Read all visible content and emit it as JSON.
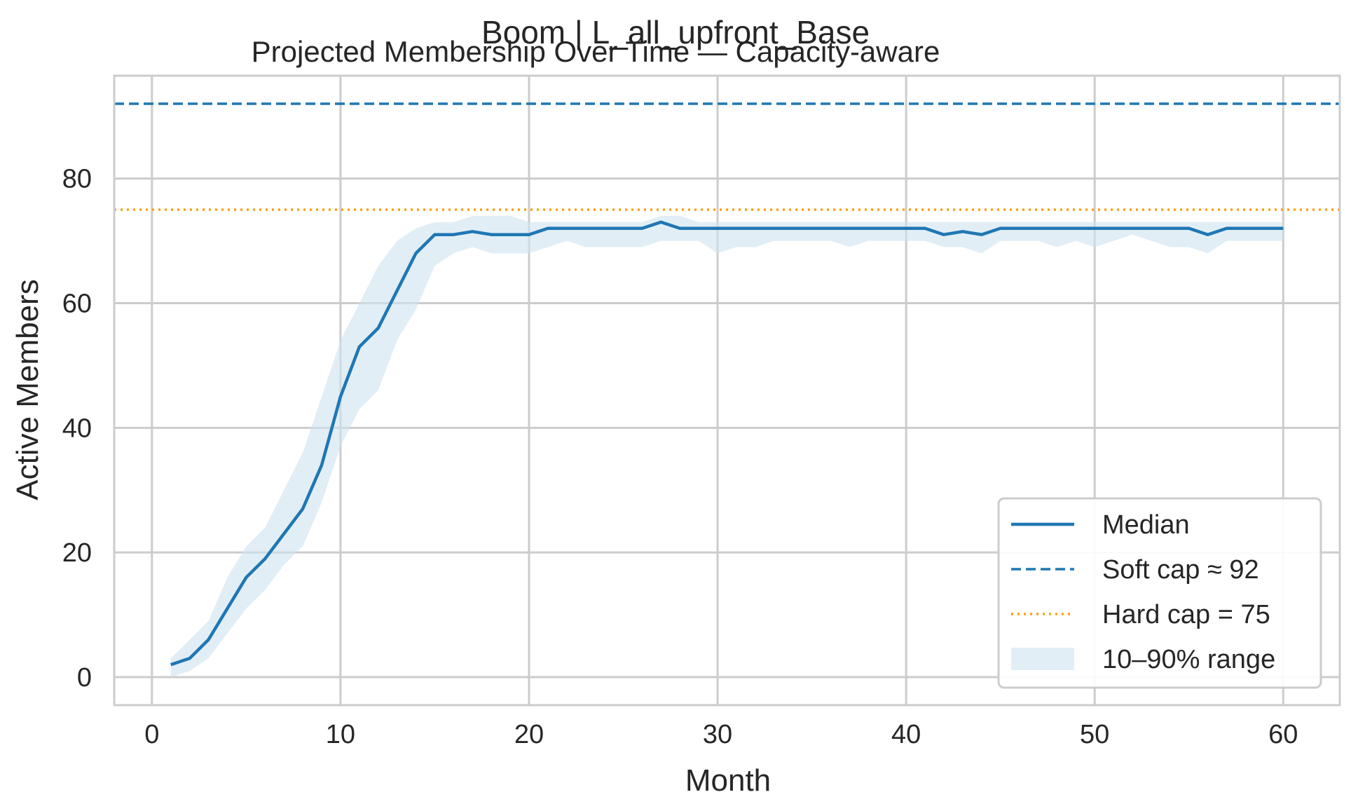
{
  "chart_data": {
    "type": "line",
    "suptitle": "Boom | L_all_upfront_Base",
    "title": "Projected Membership Over Time — Capacity-aware",
    "xlabel": "Month",
    "ylabel": "Active Members",
    "xlim": [
      -2,
      63
    ],
    "ylim": [
      -4.5,
      96.5
    ],
    "xticks": [
      0,
      10,
      20,
      30,
      40,
      50,
      60
    ],
    "yticks": [
      0,
      20,
      40,
      60,
      80
    ],
    "grid": true,
    "legend_position": "lower-right",
    "x": [
      1,
      2,
      3,
      4,
      5,
      6,
      7,
      8,
      9,
      10,
      11,
      12,
      13,
      14,
      15,
      16,
      17,
      18,
      19,
      20,
      21,
      22,
      23,
      24,
      25,
      26,
      27,
      28,
      29,
      30,
      31,
      32,
      33,
      34,
      35,
      36,
      37,
      38,
      39,
      40,
      41,
      42,
      43,
      44,
      45,
      46,
      47,
      48,
      49,
      50,
      51,
      52,
      53,
      54,
      55,
      56,
      57,
      58,
      59,
      60
    ],
    "series": [
      {
        "name": "Median",
        "color": "#1f77b4",
        "style": "solid",
        "values": [
          2,
          3,
          6,
          11,
          16,
          19,
          23,
          27,
          34,
          45,
          53,
          56,
          62,
          68,
          71,
          71,
          71.5,
          71,
          71,
          71,
          72,
          72,
          72,
          72,
          72,
          72,
          73,
          72,
          72,
          72,
          72,
          72,
          72,
          72,
          72,
          72,
          72,
          72,
          72,
          72,
          72,
          71,
          71.5,
          71,
          72,
          72,
          72,
          72,
          72,
          72,
          72,
          72,
          72,
          72,
          72,
          71,
          72,
          72,
          72,
          72
        ]
      },
      {
        "name": "10–90% range",
        "color": "#cfe2ef",
        "style": "band",
        "lower": [
          0,
          1,
          3,
          7,
          11,
          14,
          18,
          21,
          28,
          37,
          43,
          46,
          54,
          59,
          66,
          68,
          69,
          68,
          68,
          68,
          69,
          70,
          69,
          69,
          69,
          69,
          70,
          70,
          70,
          68,
          69,
          69,
          70,
          70,
          70,
          70,
          69,
          70,
          70,
          70,
          70,
          69,
          69,
          68,
          70,
          70,
          70,
          69,
          70,
          69,
          70,
          71,
          70,
          69,
          69,
          68,
          70,
          70,
          70,
          70
        ],
        "upper": [
          3,
          6,
          9,
          16,
          21,
          24,
          30,
          36,
          45,
          54,
          60,
          66,
          70,
          72,
          73,
          73,
          74,
          74,
          74,
          73,
          73,
          73,
          73,
          73,
          73,
          73,
          74,
          74,
          73,
          73,
          73,
          73,
          73,
          73,
          73,
          73,
          73,
          73,
          73,
          73,
          73,
          73,
          73,
          73,
          73,
          73,
          73,
          73,
          73,
          73,
          73,
          73,
          73,
          73,
          73,
          73,
          73,
          73,
          73,
          73
        ]
      },
      {
        "name": "Soft cap ≈ 92",
        "color": "#1f77b4",
        "style": "dashed",
        "y": 92
      },
      {
        "name": "Hard cap = 75",
        "color": "#ff9f0f",
        "style": "dotted",
        "y": 75
      }
    ],
    "legend": [
      "Median",
      "Soft cap ≈ 92",
      "Hard cap = 75",
      "10–90% range"
    ]
  }
}
